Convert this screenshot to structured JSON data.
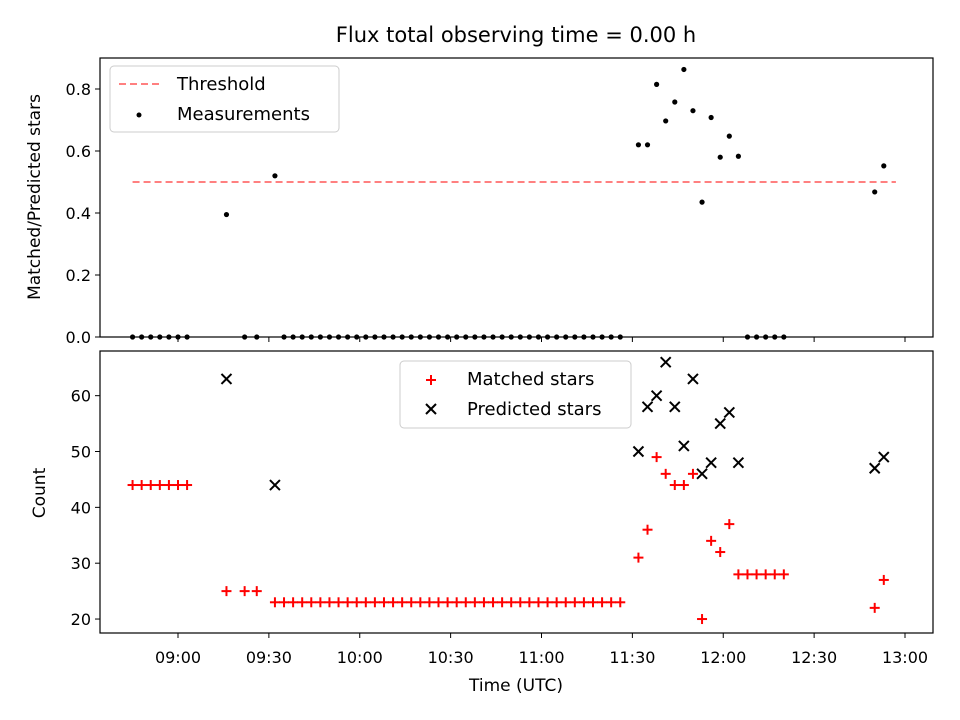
{
  "chart_data": [
    {
      "type": "scatter",
      "title": "Flux total observing time = 0.00 h",
      "xlabel": "",
      "ylabel": "Matched/Predicted stars",
      "ylim": [
        0,
        0.9
      ],
      "yticks": [
        "0.0",
        "0.2",
        "0.4",
        "0.6",
        "0.8"
      ],
      "legend": {
        "placement": "top-left",
        "entries": [
          "Threshold",
          "Measurements"
        ]
      },
      "threshold": {
        "name": "Threshold",
        "value": 0.5,
        "x_start": "08:45",
        "x_end": "12:57",
        "color": "#ff8080",
        "style": "dashed"
      },
      "series": [
        {
          "name": "Measurements",
          "color": "#000000",
          "points": [
            [
              "08:45",
              0.0
            ],
            [
              "08:48",
              0.0
            ],
            [
              "08:51",
              0.0
            ],
            [
              "08:54",
              0.0
            ],
            [
              "08:57",
              0.0
            ],
            [
              "09:00",
              0.0
            ],
            [
              "09:03",
              0.0
            ],
            [
              "09:16",
              0.395
            ],
            [
              "09:22",
              0.0
            ],
            [
              "09:26",
              0.0
            ],
            [
              "09:32",
              0.52
            ],
            [
              "09:35",
              0.0
            ],
            [
              "09:38",
              0.0
            ],
            [
              "09:41",
              0.0
            ],
            [
              "09:44",
              0.0
            ],
            [
              "09:47",
              0.0
            ],
            [
              "09:50",
              0.0
            ],
            [
              "09:53",
              0.0
            ],
            [
              "09:56",
              0.0
            ],
            [
              "09:59",
              0.0
            ],
            [
              "10:02",
              0.0
            ],
            [
              "10:05",
              0.0
            ],
            [
              "10:08",
              0.0
            ],
            [
              "10:11",
              0.0
            ],
            [
              "10:14",
              0.0
            ],
            [
              "10:17",
              0.0
            ],
            [
              "10:20",
              0.0
            ],
            [
              "10:23",
              0.0
            ],
            [
              "10:26",
              0.0
            ],
            [
              "10:29",
              0.0
            ],
            [
              "10:32",
              0.0
            ],
            [
              "10:35",
              0.0
            ],
            [
              "10:38",
              0.0
            ],
            [
              "10:41",
              0.0
            ],
            [
              "10:44",
              0.0
            ],
            [
              "10:47",
              0.0
            ],
            [
              "10:50",
              0.0
            ],
            [
              "10:53",
              0.0
            ],
            [
              "10:56",
              0.0
            ],
            [
              "10:59",
              0.0
            ],
            [
              "11:02",
              0.0
            ],
            [
              "11:05",
              0.0
            ],
            [
              "11:08",
              0.0
            ],
            [
              "11:11",
              0.0
            ],
            [
              "11:14",
              0.0
            ],
            [
              "11:17",
              0.0
            ],
            [
              "11:20",
              0.0
            ],
            [
              "11:23",
              0.0
            ],
            [
              "11:26",
              0.0
            ],
            [
              "11:32",
              0.62
            ],
            [
              "11:35",
              0.62
            ],
            [
              "11:38",
              0.815
            ],
            [
              "11:41",
              0.697
            ],
            [
              "11:44",
              0.758
            ],
            [
              "11:47",
              0.863
            ],
            [
              "11:50",
              0.73
            ],
            [
              "11:53",
              0.435
            ],
            [
              "11:56",
              0.708
            ],
            [
              "11:59",
              0.58
            ],
            [
              "12:02",
              0.648
            ],
            [
              "12:05",
              0.583
            ],
            [
              "12:08",
              0.0
            ],
            [
              "12:11",
              0.0
            ],
            [
              "12:14",
              0.0
            ],
            [
              "12:17",
              0.0
            ],
            [
              "12:20",
              0.0
            ],
            [
              "12:50",
              0.468
            ],
            [
              "12:53",
              0.552
            ]
          ]
        }
      ]
    },
    {
      "type": "scatter",
      "title": "",
      "xlabel": "Time (UTC)",
      "ylabel": "Count",
      "ylim": [
        17.5,
        68
      ],
      "yticks": [
        "20",
        "30",
        "40",
        "50",
        "60"
      ],
      "xticks": [
        "09:00",
        "09:30",
        "10:00",
        "10:30",
        "11:00",
        "11:30",
        "12:00",
        "12:30",
        "13:00"
      ],
      "legend": {
        "placement": "upper-center",
        "entries": [
          "Matched stars",
          "Predicted stars"
        ]
      },
      "series": [
        {
          "name": "Matched stars",
          "marker": "plus",
          "color": "#ff0000",
          "points": [
            [
              "08:45",
              44
            ],
            [
              "08:48",
              44
            ],
            [
              "08:51",
              44
            ],
            [
              "08:54",
              44
            ],
            [
              "08:57",
              44
            ],
            [
              "09:00",
              44
            ],
            [
              "09:03",
              44
            ],
            [
              "09:16",
              25
            ],
            [
              "09:22",
              25
            ],
            [
              "09:26",
              25
            ],
            [
              "09:32",
              23
            ],
            [
              "09:35",
              23
            ],
            [
              "09:38",
              23
            ],
            [
              "09:41",
              23
            ],
            [
              "09:44",
              23
            ],
            [
              "09:47",
              23
            ],
            [
              "09:50",
              23
            ],
            [
              "09:53",
              23
            ],
            [
              "09:56",
              23
            ],
            [
              "09:59",
              23
            ],
            [
              "10:02",
              23
            ],
            [
              "10:05",
              23
            ],
            [
              "10:08",
              23
            ],
            [
              "10:11",
              23
            ],
            [
              "10:14",
              23
            ],
            [
              "10:17",
              23
            ],
            [
              "10:20",
              23
            ],
            [
              "10:23",
              23
            ],
            [
              "10:26",
              23
            ],
            [
              "10:29",
              23
            ],
            [
              "10:32",
              23
            ],
            [
              "10:35",
              23
            ],
            [
              "10:38",
              23
            ],
            [
              "10:41",
              23
            ],
            [
              "10:44",
              23
            ],
            [
              "10:47",
              23
            ],
            [
              "10:50",
              23
            ],
            [
              "10:53",
              23
            ],
            [
              "10:56",
              23
            ],
            [
              "10:59",
              23
            ],
            [
              "11:02",
              23
            ],
            [
              "11:05",
              23
            ],
            [
              "11:08",
              23
            ],
            [
              "11:11",
              23
            ],
            [
              "11:14",
              23
            ],
            [
              "11:17",
              23
            ],
            [
              "11:20",
              23
            ],
            [
              "11:23",
              23
            ],
            [
              "11:26",
              23
            ],
            [
              "11:32",
              31
            ],
            [
              "11:35",
              36
            ],
            [
              "11:38",
              49
            ],
            [
              "11:41",
              46
            ],
            [
              "11:44",
              44
            ],
            [
              "11:47",
              44
            ],
            [
              "11:50",
              46
            ],
            [
              "11:53",
              20
            ],
            [
              "11:56",
              34
            ],
            [
              "11:59",
              32
            ],
            [
              "12:02",
              37
            ],
            [
              "12:05",
              28
            ],
            [
              "12:08",
              28
            ],
            [
              "12:11",
              28
            ],
            [
              "12:14",
              28
            ],
            [
              "12:17",
              28
            ],
            [
              "12:20",
              28
            ],
            [
              "12:50",
              22
            ],
            [
              "12:53",
              27
            ]
          ]
        },
        {
          "name": "Predicted stars",
          "marker": "x",
          "color": "#000000",
          "points": [
            [
              "09:16",
              63
            ],
            [
              "09:32",
              44
            ],
            [
              "11:32",
              50
            ],
            [
              "11:35",
              58
            ],
            [
              "11:38",
              60
            ],
            [
              "11:41",
              66
            ],
            [
              "11:44",
              58
            ],
            [
              "11:47",
              51
            ],
            [
              "11:50",
              63
            ],
            [
              "11:53",
              46
            ],
            [
              "11:56",
              48
            ],
            [
              "11:59",
              55
            ],
            [
              "12:02",
              57
            ],
            [
              "12:05",
              48
            ],
            [
              "12:50",
              47
            ],
            [
              "12:53",
              49
            ]
          ]
        }
      ]
    }
  ]
}
